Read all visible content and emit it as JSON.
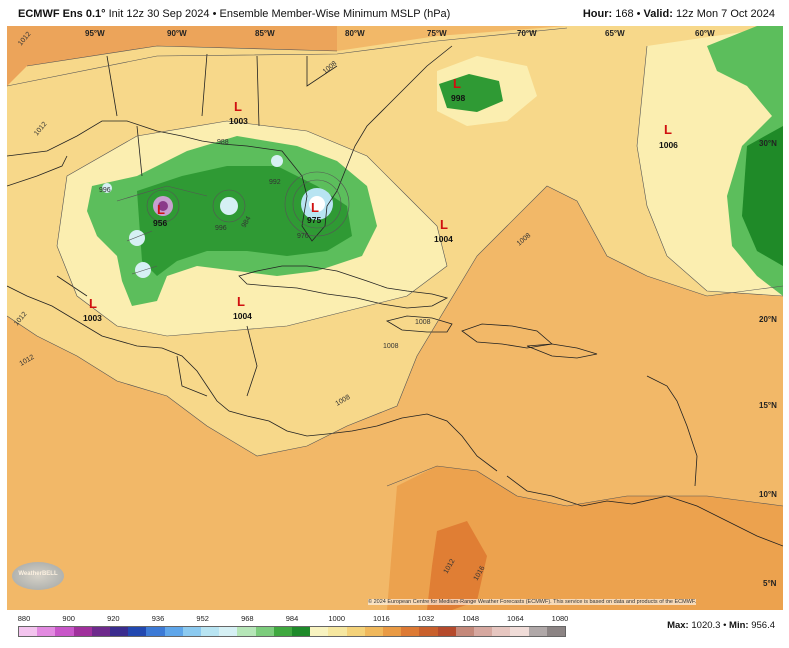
{
  "header": {
    "model": "ECMWF Ens 0.1°",
    "init": "Init 12z 30 Sep 2024",
    "description": "Ensemble Member-Wise Minimum MSLP (hPa)",
    "hour_label": "Hour:",
    "hour": "168",
    "valid_label": "Valid:",
    "valid": "12z Mon 7 Oct 2024"
  },
  "map": {
    "lon_labels": [
      "95°W",
      "90°W",
      "85°W",
      "80°W",
      "75°W",
      "70°W",
      "65°W",
      "60°W"
    ],
    "lat_labels": [
      "30°N",
      "20°N",
      "15°N",
      "10°N",
      "5°N"
    ],
    "lows": [
      {
        "symbol": "L",
        "value": "1003"
      },
      {
        "symbol": "L",
        "value": "998"
      },
      {
        "symbol": "L",
        "value": "1006"
      },
      {
        "symbol": "L",
        "value": "1004"
      },
      {
        "symbol": "L",
        "value": "1003"
      },
      {
        "symbol": "L",
        "value": "1004"
      },
      {
        "symbol": "L",
        "value": "956"
      },
      {
        "symbol": "L",
        "value": "975"
      }
    ],
    "isobar_labels": [
      "1012",
      "1012",
      "1008",
      "1008",
      "1008",
      "1008",
      "1008",
      "1012",
      "1016",
      "1012",
      "1012",
      "996",
      "996",
      "992",
      "988",
      "984",
      "976",
      "996"
    ]
  },
  "colorbar": {
    "ticks": [
      "880",
      "900",
      "920",
      "936",
      "952",
      "968",
      "984",
      "1000",
      "1016",
      "1032",
      "1048",
      "1064",
      "1080"
    ],
    "colors": [
      "#f3c4ee",
      "#e28ae0",
      "#c856c8",
      "#a0309c",
      "#6e2a8c",
      "#3a2c8e",
      "#2248b0",
      "#3c7ad6",
      "#5fa6ea",
      "#8ccaf0",
      "#b8e4f2",
      "#d6f0f4",
      "#b6e6b8",
      "#7ccc7c",
      "#3fa83f",
      "#1e8a2a",
      "#f8f3c0",
      "#f6e7a0",
      "#f4d27a",
      "#f0b85c",
      "#e99a44",
      "#dd7a34",
      "#c9602c",
      "#b54a2c",
      "#c4887a",
      "#d6a8a0",
      "#e6c6c0",
      "#f0dcd8",
      "#b0a8a8",
      "#8c8484"
    ]
  },
  "maxmin": {
    "max_label": "Max:",
    "max": "1020.3",
    "min_label": "Min:",
    "min": "956.4"
  },
  "credit": "© 2024 European Centre for Medium-Range Weather Forecasts (ECMWF). This service is based on data and products of the ECMWF.",
  "logo": "WeatherBELL"
}
